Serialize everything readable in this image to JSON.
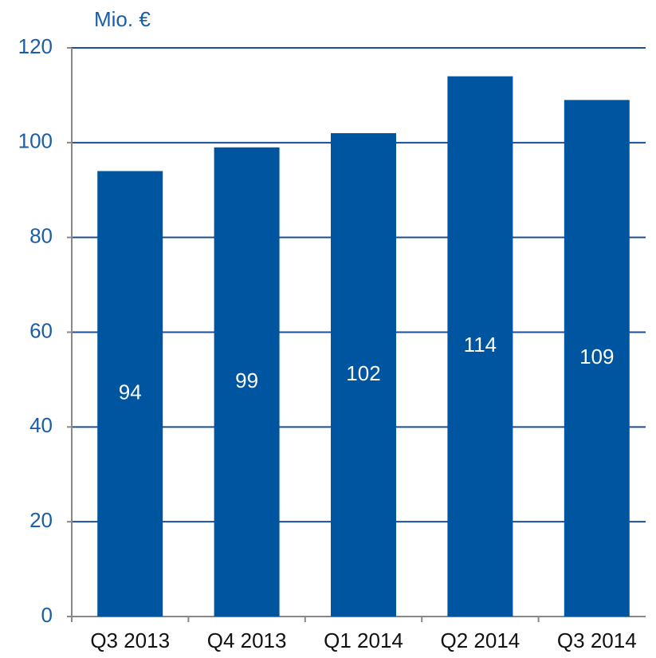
{
  "chart_data": {
    "type": "bar",
    "title": "Mio. €",
    "categories": [
      "Q3 2013",
      "Q4 2013",
      "Q1 2014",
      "Q2 2014",
      "Q3 2014"
    ],
    "values": [
      94,
      99,
      102,
      114,
      109
    ],
    "color": "#0055a0",
    "ylim": [
      0,
      120
    ],
    "yticks": [
      0,
      20,
      40,
      60,
      80,
      100,
      120
    ],
    "grid": true
  }
}
